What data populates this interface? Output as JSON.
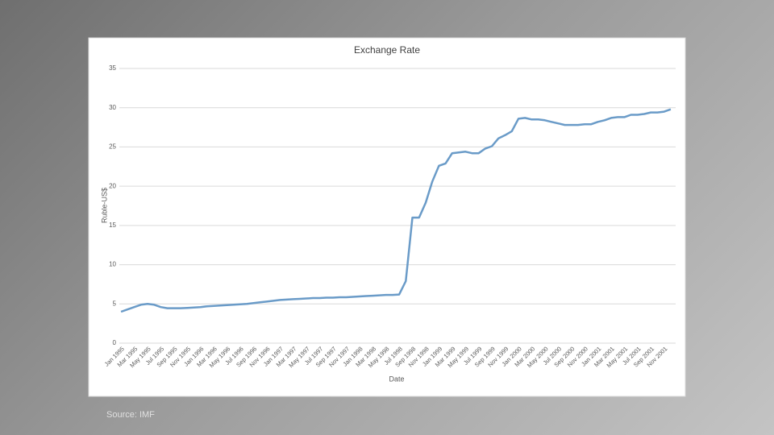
{
  "chart_data": {
    "type": "line",
    "title": "Exchange Rate",
    "x_label": "Date",
    "y_label": "Ruble-US$",
    "source": "Source: IMF",
    "categories": [
      "Jan 1995",
      null,
      "Mar 1995",
      null,
      "May 1995",
      null,
      "Jul 1995",
      null,
      "Sep 1995",
      null,
      "Nov 1995",
      null,
      "Jan 1996",
      null,
      "Mar 1996",
      null,
      "May 1996",
      null,
      "Jul 1996",
      null,
      "Sep 1996",
      null,
      "Nov 1996",
      null,
      "Jan 1997",
      null,
      "Mar 1997",
      null,
      "May 1997",
      null,
      "Jul 1997",
      null,
      "Sep 1997",
      null,
      "Nov 1997",
      null,
      "Jan 1998",
      null,
      "Mar 1998",
      null,
      "May 1998",
      null,
      "Jul 1998",
      null,
      "Sep 1998",
      null,
      "Nov 1998",
      null,
      "Jan 1999",
      null,
      "Mar 1999",
      null,
      "May 1999",
      null,
      "Jul 1999",
      null,
      "Sep 1999",
      null,
      "Nov 1999",
      null,
      "Jan 2000",
      null,
      "Mar 2000",
      null,
      "May 2000",
      null,
      "Jul 2000",
      null,
      "Sep 2000",
      null,
      "Nov 2000",
      null,
      "Jan 2001",
      null,
      "Mar 2001",
      null,
      "May 2001",
      null,
      "Jul 2001",
      null,
      "Sep 2001",
      null,
      "Nov 2001",
      null
    ],
    "values": [
      4.0,
      4.3,
      4.6,
      4.9,
      5.0,
      4.9,
      4.6,
      4.45,
      4.45,
      4.45,
      4.5,
      4.55,
      4.6,
      4.7,
      4.75,
      4.8,
      4.85,
      4.9,
      4.95,
      5.0,
      5.1,
      5.2,
      5.3,
      5.4,
      5.5,
      5.55,
      5.6,
      5.65,
      5.7,
      5.75,
      5.75,
      5.8,
      5.8,
      5.85,
      5.85,
      5.9,
      5.95,
      6.0,
      6.05,
      6.1,
      6.15,
      6.15,
      6.2,
      7.9,
      16.0,
      16.0,
      17.9,
      20.6,
      22.6,
      22.9,
      24.2,
      24.3,
      24.4,
      24.2,
      24.2,
      24.8,
      25.1,
      26.1,
      26.5,
      27.0,
      28.6,
      28.7,
      28.5,
      28.5,
      28.4,
      28.2,
      28.0,
      27.8,
      27.8,
      27.8,
      27.9,
      27.9,
      28.2,
      28.4,
      28.7,
      28.8,
      28.8,
      29.1,
      29.1,
      29.2,
      29.4,
      29.4,
      29.5,
      29.8
    ],
    "color": "#6a9bc8",
    "ylim": [
      0,
      35
    ],
    "yticks": [
      0,
      5,
      10,
      15,
      20,
      25,
      30,
      35
    ],
    "grid": true
  }
}
